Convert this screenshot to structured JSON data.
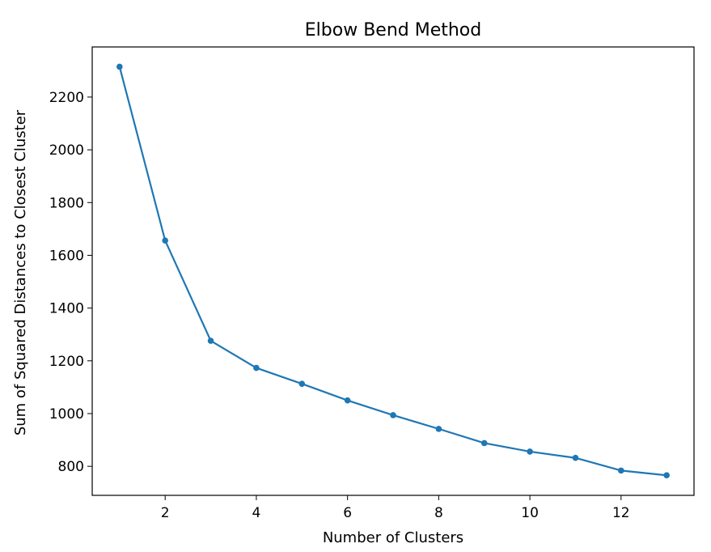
{
  "chart_data": {
    "type": "line",
    "title": "Elbow Bend Method",
    "xlabel": "Number of Clusters",
    "ylabel": "Sum of Squared Distances to Closest Cluster",
    "x": [
      1,
      2,
      3,
      4,
      5,
      6,
      7,
      8,
      9,
      10,
      11,
      12,
      13
    ],
    "series": [
      {
        "values": [
          2315,
          1656,
          1276,
          1173,
          1113,
          1050,
          994,
          942,
          888,
          856,
          832,
          784,
          766
        ]
      }
    ],
    "xlim": [
      0.4,
      13.6
    ],
    "ylim": [
      690,
      2390
    ],
    "xticks": [
      2,
      4,
      6,
      8,
      10,
      12
    ],
    "yticks": [
      800,
      1000,
      1200,
      1400,
      1600,
      1800,
      2000,
      2200
    ],
    "line_color": "#1f77b4",
    "grid": false,
    "legend": "none",
    "marker": "circle"
  }
}
